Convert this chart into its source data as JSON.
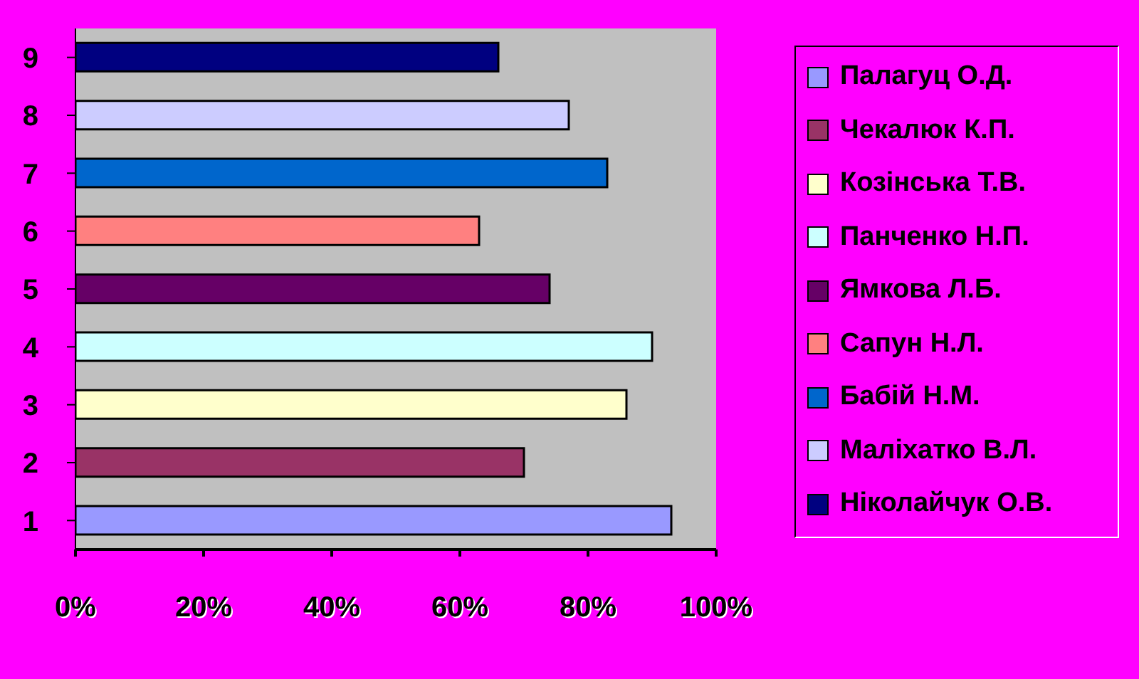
{
  "chart_data": {
    "type": "bar",
    "orientation": "horizontal",
    "stacked": true,
    "categories": [
      "9",
      "8",
      "7",
      "6",
      "5",
      "4",
      "3",
      "2",
      "1"
    ],
    "series": [
      {
        "name": "Палагуц О.Д.",
        "color": "#9999ff",
        "values": [
          null,
          null,
          null,
          null,
          null,
          null,
          null,
          null,
          93
        ]
      },
      {
        "name": "Чекалюк К.П.",
        "color": "#993366",
        "values": [
          null,
          null,
          null,
          null,
          null,
          null,
          null,
          70,
          null
        ]
      },
      {
        "name": "Козінська Т.В.",
        "color": "#ffffcc",
        "values": [
          null,
          null,
          null,
          null,
          null,
          null,
          86,
          null,
          null
        ]
      },
      {
        "name": "Панченко Н.П.",
        "color": "#ccffff",
        "values": [
          null,
          null,
          null,
          null,
          null,
          90,
          null,
          null,
          null
        ]
      },
      {
        "name": "Ямкова Л.Б.",
        "color": "#660066",
        "values": [
          null,
          null,
          null,
          null,
          74,
          null,
          null,
          null,
          null
        ]
      },
      {
        "name": "Сапун Н.Л.",
        "color": "#ff8080",
        "values": [
          null,
          null,
          null,
          63,
          null,
          null,
          null,
          null,
          null
        ]
      },
      {
        "name": "Бабій Н.М.",
        "color": "#0066cc",
        "values": [
          null,
          null,
          83,
          null,
          null,
          null,
          null,
          null,
          null
        ]
      },
      {
        "name": "Маліхатко В.Л.",
        "color": "#ccccff",
        "values": [
          null,
          77,
          null,
          null,
          null,
          null,
          null,
          null,
          null
        ]
      },
      {
        "name": "Ніколайчук О.В.",
        "color": "#000080",
        "values": [
          66,
          null,
          null,
          null,
          null,
          null,
          null,
          null,
          null
        ]
      }
    ],
    "xlim": [
      0,
      100
    ],
    "xticks": [
      {
        "value": 0,
        "label": "0%"
      },
      {
        "value": 20,
        "label": "20%"
      },
      {
        "value": 40,
        "label": "40%"
      },
      {
        "value": 60,
        "label": "60%"
      },
      {
        "value": 80,
        "label": "80%"
      },
      {
        "value": 100,
        "label": "100%"
      }
    ],
    "grid": false,
    "legend": "right"
  }
}
